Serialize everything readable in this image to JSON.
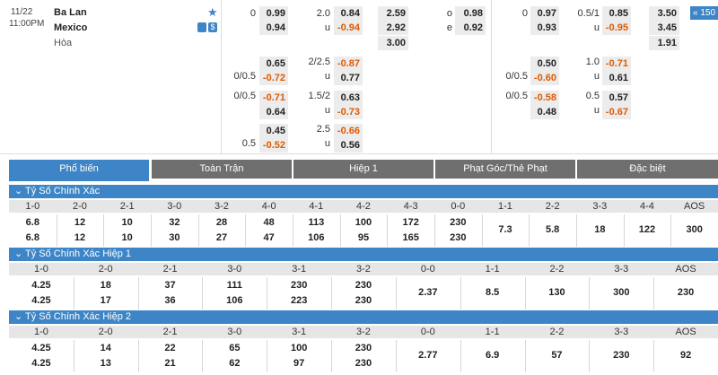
{
  "match": {
    "date": "11/22",
    "time": "11:00PM",
    "home": "Ba Lan",
    "away": "Mexico",
    "draw": "Hòa",
    "star_icon": "star-icon",
    "stat_icon": "stats-icon",
    "money_icon": "dollar-icon"
  },
  "fulltime": {
    "hdp_lines": [
      {
        "line": "0",
        "home": "0.99",
        "away": "0.94"
      }
    ],
    "ou": {
      "line": "2.0",
      "over": "0.84",
      "u_label": "u",
      "under": "-0.94"
    },
    "x12": [
      "2.59",
      "2.92",
      "3.00"
    ],
    "oe": {
      "o": "o",
      "o_val": "0.98",
      "e": "e",
      "e_val": "0.92"
    }
  },
  "halftime": {
    "hdp": {
      "line": "0",
      "home": "0.97",
      "away": "0.93"
    },
    "ou": {
      "line": "0.5/1",
      "over": "0.85",
      "u_label": "u",
      "under": "-0.95"
    },
    "x12": [
      "3.50",
      "3.45",
      "1.91"
    ]
  },
  "more_button": "150",
  "extra_ft": [
    {
      "hl": "",
      "h": "0.65",
      "ol": "2/2.5",
      "o": "-0.87"
    },
    {
      "hl": "0/0.5",
      "h": "-0.72",
      "ol": "u",
      "o": "0.77"
    },
    {
      "hl": "0/0.5",
      "h": "-0.71",
      "ol": "1.5/2",
      "o": "0.63"
    },
    {
      "hl": "",
      "h": "0.64",
      "ol": "u",
      "o": "-0.73"
    },
    {
      "hl": "",
      "h": "0.45",
      "ol": "2.5",
      "o": "-0.66"
    },
    {
      "hl": "0.5",
      "h": "-0.52",
      "ol": "u",
      "o": "0.56"
    }
  ],
  "extra_ht": [
    {
      "hl": "",
      "h": "0.50",
      "ol": "1.0",
      "o": "-0.71"
    },
    {
      "hl": "0/0.5",
      "h": "-0.60",
      "ol": "u",
      "o": "0.61"
    },
    {
      "hl": "0/0.5",
      "h": "-0.58",
      "ol": "0.5",
      "o": "0.57"
    },
    {
      "hl": "",
      "h": "0.48",
      "ol": "u",
      "o": "-0.67"
    }
  ],
  "tabs": [
    "Phổ biến",
    "Toàn Trận",
    "Hiệp 1",
    "Phạt Góc/Thẻ Phạt",
    "Đặc biệt"
  ],
  "sections": [
    {
      "title": "Tỷ Số Chính Xác",
      "headers": [
        "1-0",
        "2-0",
        "2-1",
        "3-0",
        "3-2",
        "4-0",
        "4-1",
        "4-2",
        "4-3",
        "0-0",
        "1-1",
        "2-2",
        "3-3",
        "4-4",
        "AOS"
      ],
      "row1": [
        "6.8",
        "12",
        "10",
        "32",
        "28",
        "48",
        "113",
        "100",
        "172",
        "230"
      ],
      "row2": [
        "6.8",
        "12",
        "10",
        "30",
        "27",
        "47",
        "106",
        "95",
        "165",
        "230"
      ],
      "single": [
        "7.3",
        "5.8",
        "18",
        "122",
        "300",
        "69"
      ]
    },
    {
      "title": "Tỷ Số Chính Xác Hiệp 1",
      "headers": [
        "1-0",
        "2-0",
        "2-1",
        "3-0",
        "3-1",
        "3-2",
        "0-0",
        "1-1",
        "2-2",
        "3-3",
        "AOS"
      ],
      "row1": [
        "4.25",
        "18",
        "37",
        "111",
        "230",
        "230"
      ],
      "row2": [
        "4.25",
        "17",
        "36",
        "106",
        "223",
        "230"
      ],
      "single": [
        "2.37",
        "8.5",
        "130",
        "300",
        "230"
      ]
    },
    {
      "title": "Tỷ Số Chính Xác Hiệp 2",
      "headers": [
        "1-0",
        "2-0",
        "2-1",
        "3-0",
        "3-1",
        "3-2",
        "0-0",
        "1-1",
        "2-2",
        "3-3",
        "AOS"
      ],
      "row1": [
        "4.25",
        "14",
        "22",
        "65",
        "100",
        "230"
      ],
      "row2": [
        "4.25",
        "13",
        "21",
        "62",
        "97",
        "230"
      ],
      "single": [
        "2.77",
        "6.9",
        "57",
        "230",
        "92"
      ]
    }
  ]
}
